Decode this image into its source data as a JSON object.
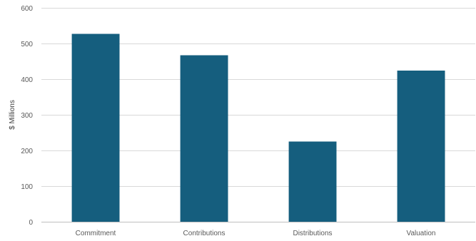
{
  "chart_data": {
    "type": "bar",
    "title": "",
    "xlabel": "",
    "ylabel": "$ Millions",
    "categories": [
      "Commitment",
      "Contributions",
      "Distributions",
      "Valuation"
    ],
    "values": [
      527,
      467,
      225,
      424
    ],
    "ylim": [
      0,
      600
    ],
    "yticks": [
      0,
      100,
      200,
      300,
      400,
      500,
      600
    ],
    "grid": true,
    "legend": "none",
    "bar_color": "#155e7e"
  }
}
